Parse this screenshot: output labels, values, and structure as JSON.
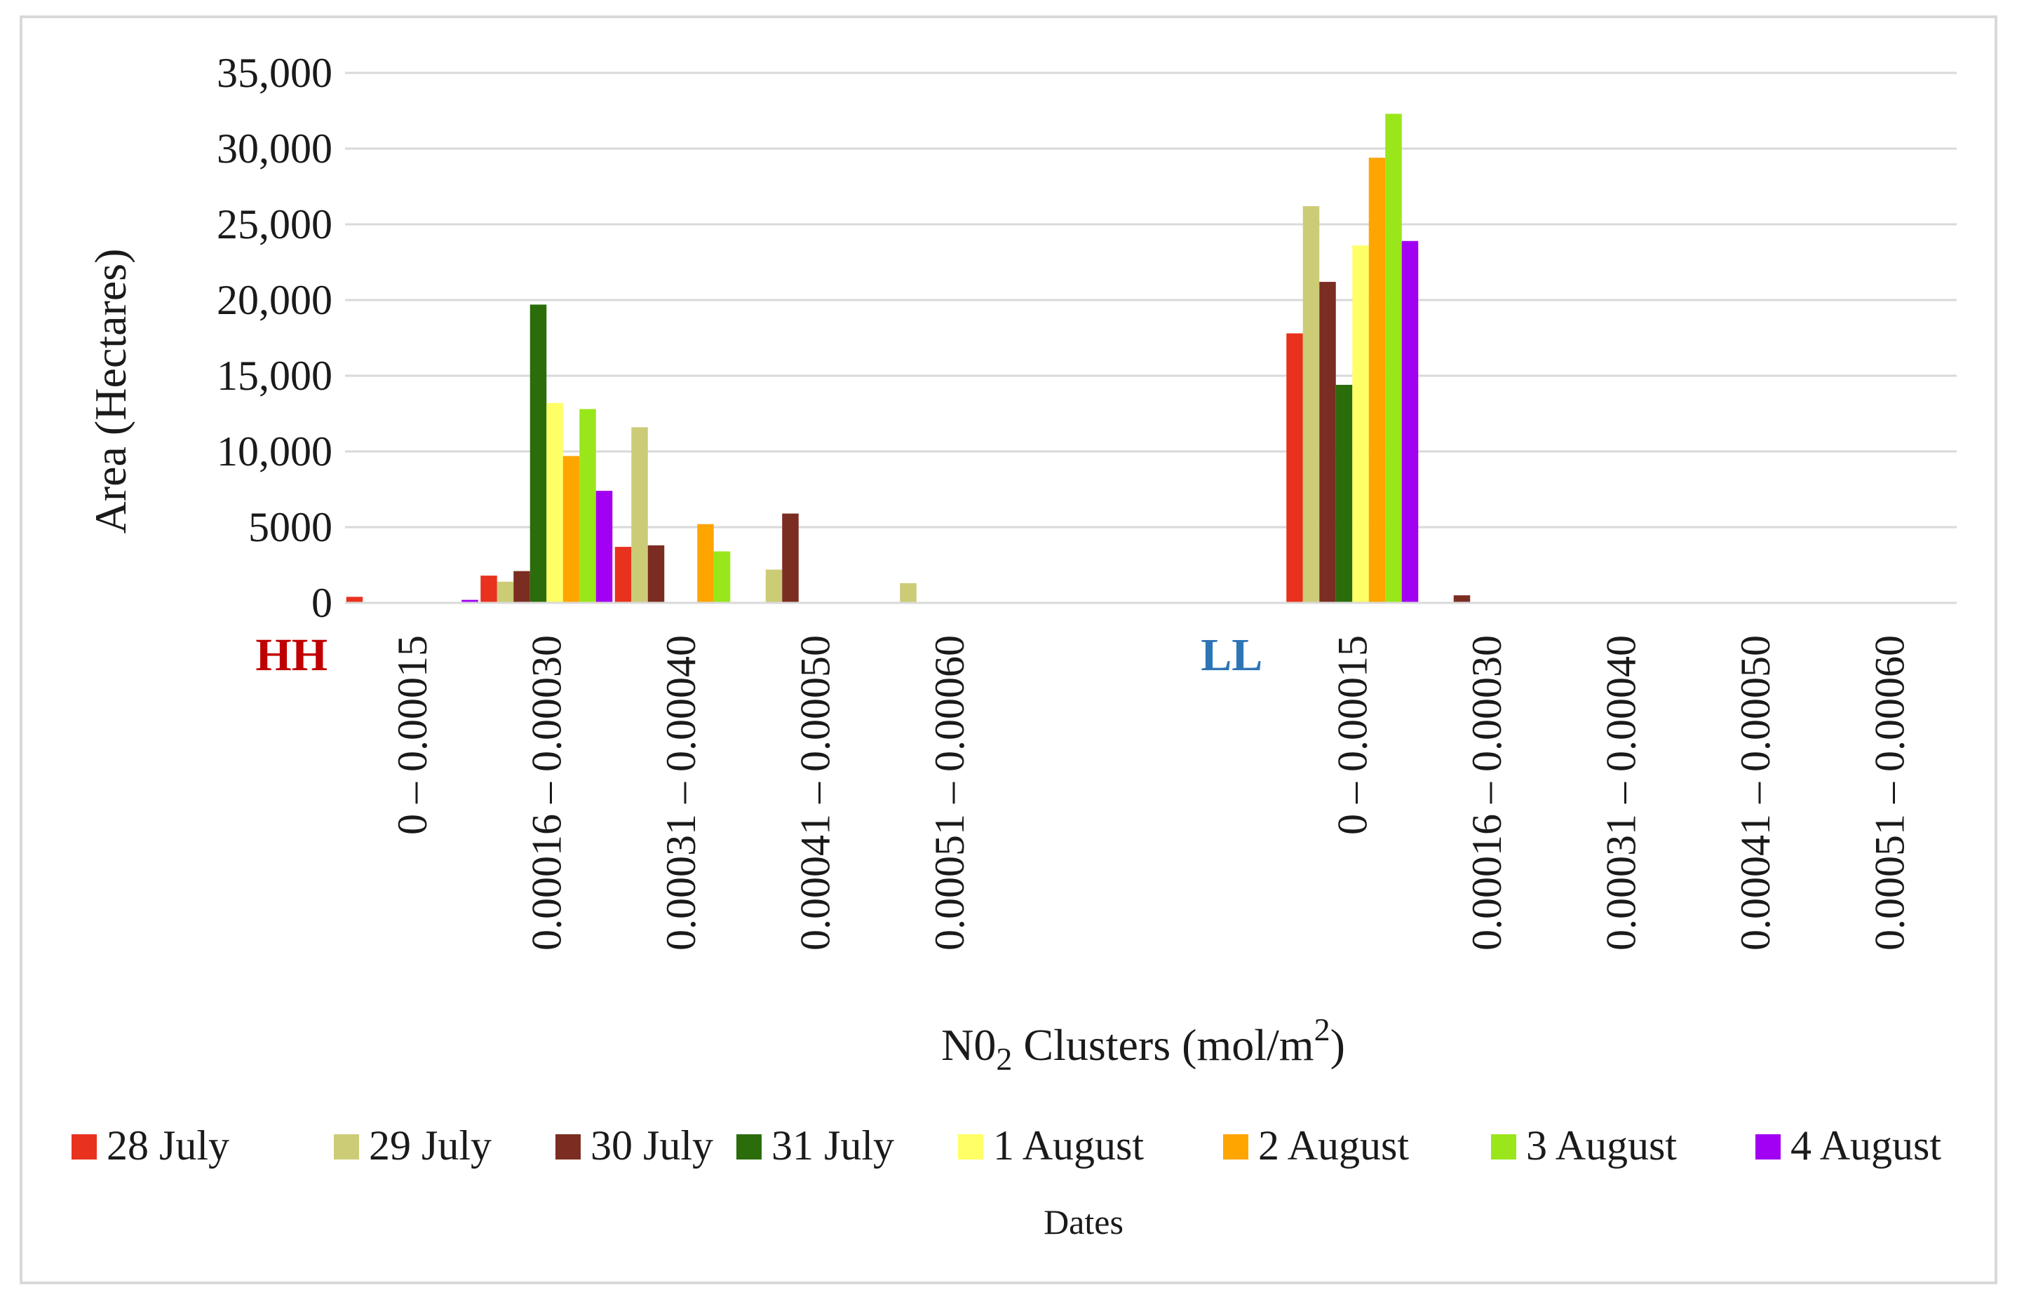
{
  "chart_data": {
    "type": "bar",
    "title": "",
    "xlabel": {
      "main": "N0",
      "sub": "2",
      "rest": " Clusters (mol/m",
      "sup": "2",
      "end": ")"
    },
    "ylabel": "Area (Hectares)",
    "ylim": [
      0,
      35000
    ],
    "yticks": [
      {
        "value": 0,
        "label": "0"
      },
      {
        "value": 5000,
        "label": "5000"
      },
      {
        "value": 10000,
        "label": "10,000"
      },
      {
        "value": 15000,
        "label": "15,000"
      },
      {
        "value": 20000,
        "label": "20,000"
      },
      {
        "value": 25000,
        "label": "25,000"
      },
      {
        "value": 30000,
        "label": "30,000"
      },
      {
        "value": 35000,
        "label": "35,000"
      }
    ],
    "grid": true,
    "legend_position": "bottom",
    "legend_title": "Dates",
    "groups": [
      {
        "label": "HH",
        "color": "#c00000",
        "categories": [
          "0 – 0.00015",
          "0.00016 – 0.00030",
          "0.00031 – 0.00040",
          "0.00041 – 0.00050",
          "0.00051 – 0.00060"
        ]
      },
      {
        "label": "LL",
        "color": "#2e75b6",
        "categories": [
          "0 – 0.00015",
          "0.00016 – 0.00030",
          "0.00031 – 0.00040",
          "0.00041 – 0.00050",
          "0.00051 – 0.00060"
        ]
      }
    ],
    "categories": [
      "0 – 0.00015",
      "0.00016 – 0.00030",
      "0.00031 – 0.00040",
      "0.00041 – 0.00050",
      "0.00051 – 0.00060",
      "",
      "",
      "0 – 0.00015",
      "0.00016 – 0.00030",
      "0.00031 – 0.00040",
      "0.00041 – 0.00050",
      "0.00051 – 0.00060"
    ],
    "series": [
      {
        "name": "28 July",
        "color": "#e8321e",
        "values": [
          400,
          1800,
          3700,
          0,
          0,
          0,
          0,
          17800,
          0,
          0,
          0,
          0
        ]
      },
      {
        "name": "29 July",
        "color": "#cccc77",
        "values": [
          0,
          1400,
          11600,
          2200,
          1300,
          0,
          0,
          26200,
          0,
          0,
          0,
          0
        ]
      },
      {
        "name": "30 July",
        "color": "#7b2d22",
        "values": [
          0,
          2100,
          3800,
          5900,
          0,
          0,
          0,
          21200,
          500,
          0,
          0,
          0
        ]
      },
      {
        "name": "31 July",
        "color": "#2b6d0a",
        "values": [
          0,
          19700,
          0,
          0,
          0,
          0,
          0,
          14400,
          0,
          0,
          0,
          0
        ]
      },
      {
        "name": "1 August",
        "color": "#ffff66",
        "values": [
          0,
          13200,
          0,
          0,
          0,
          0,
          0,
          23600,
          0,
          0,
          0,
          0
        ]
      },
      {
        "name": "2 August",
        "color": "#ffa500",
        "values": [
          0,
          9700,
          5200,
          0,
          0,
          0,
          0,
          29400,
          0,
          0,
          0,
          0
        ]
      },
      {
        "name": "3 August",
        "color": "#99e61a",
        "values": [
          0,
          12800,
          3400,
          0,
          0,
          0,
          0,
          32300,
          0,
          0,
          0,
          0
        ]
      },
      {
        "name": "4 August",
        "color": "#a100f2",
        "values": [
          200,
          7400,
          0,
          0,
          0,
          0,
          0,
          23900,
          0,
          0,
          0,
          0
        ]
      }
    ]
  }
}
